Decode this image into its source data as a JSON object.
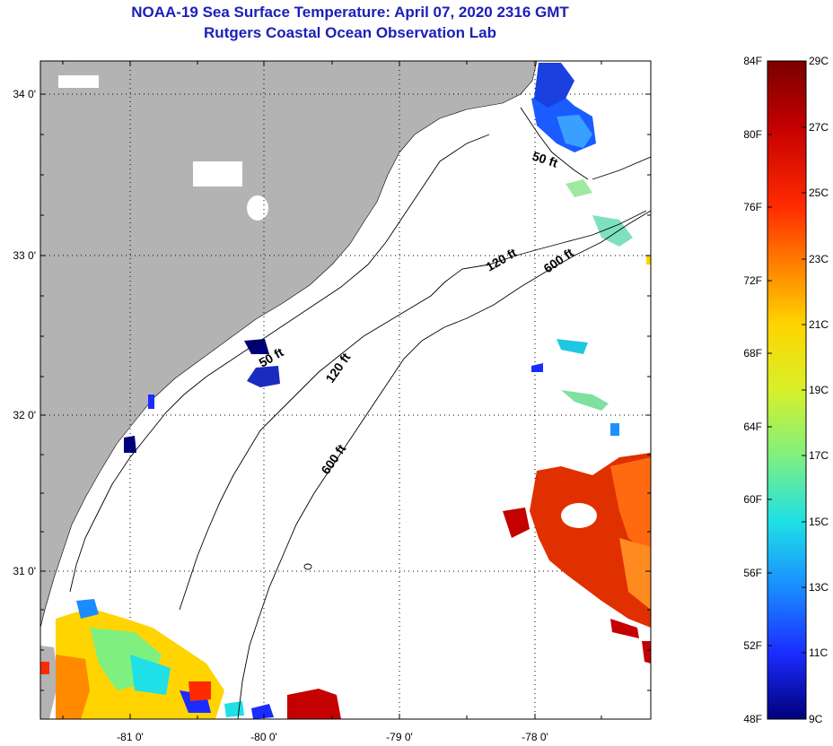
{
  "title": "NOAA-19 Sea Surface Temperature:  April 07, 2020 2316 GMT",
  "subtitle": "Rutgers Coastal Ocean Observation Lab",
  "map": {
    "lat_ticks": [
      "34 0'",
      "33 0'",
      "32 0'",
      "31 0'"
    ],
    "lon_ticks": [
      "-81 0'",
      "-80 0'",
      "-79 0'",
      "-78 0'"
    ],
    "grid": true,
    "land_color": "#b3b3b3",
    "ocean_color": "#ffffff"
  },
  "contours": {
    "c50a": "50 ft",
    "c50b": "50 ft",
    "c120a": "120 ft",
    "c120b": "120 ft",
    "c600a": "600 ft",
    "c600b": "600 ft"
  },
  "colorbar": {
    "f_labels": [
      "84F",
      "80F",
      "76F",
      "72F",
      "68F",
      "64F",
      "60F",
      "56F",
      "52F",
      "48F"
    ],
    "c_labels": [
      "29C",
      "27C",
      "25C",
      "23C",
      "21C",
      "19C",
      "17C",
      "15C",
      "13C",
      "11C",
      "9C"
    ],
    "colors": [
      "#7a0000",
      "#c40000",
      "#ff2a00",
      "#ff8a00",
      "#ffd400",
      "#d8f02a",
      "#7ff07f",
      "#1ee0e6",
      "#1a8cff",
      "#1a2cff",
      "#00007a"
    ]
  }
}
